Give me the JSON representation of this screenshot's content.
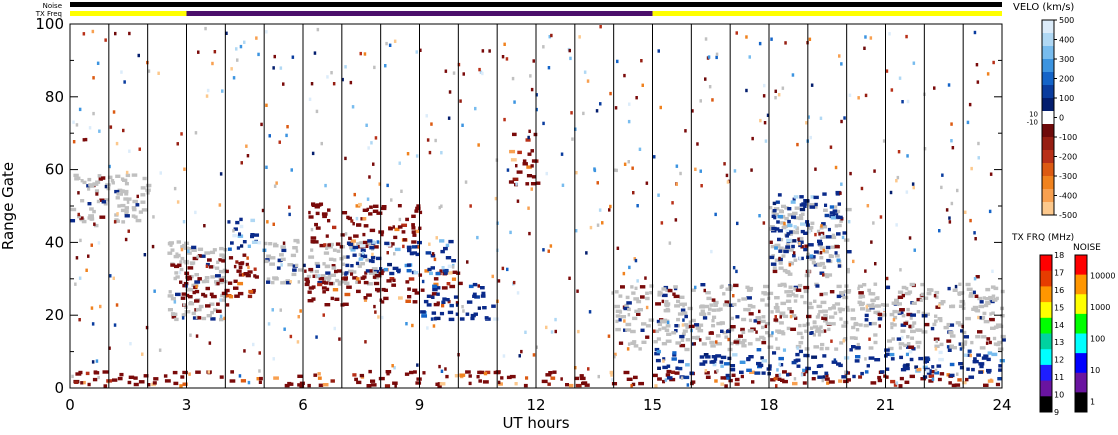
{
  "top_labels": {
    "noise": "Noise",
    "txfreq": "TX Freq"
  },
  "colors": {
    "noise_bar": "#000000",
    "txfreq_yellow": "#ffff00",
    "txfreq_purple": "#4b0f6b",
    "ground_scatter": "#c0c0c0"
  },
  "chart_data": {
    "type": "heatmap",
    "xlabel": "UT hours",
    "ylabel": "Range Gate",
    "xlim": [
      0,
      24
    ],
    "ylim": [
      0,
      100
    ],
    "x_ticks": [
      "0",
      "3",
      "6",
      "9",
      "12",
      "15",
      "18",
      "21",
      "24"
    ],
    "y_ticks": [
      "0",
      "20",
      "40",
      "60",
      "80",
      "100"
    ],
    "vertical_gridlines_hours": [
      1,
      2,
      3,
      4,
      5,
      6,
      7,
      8,
      9,
      10,
      11,
      12,
      13,
      14,
      15,
      16,
      17,
      18,
      19,
      20,
      21,
      22,
      23
    ],
    "txfreq_segments": [
      {
        "start": 0,
        "end": 3,
        "color": "yellow"
      },
      {
        "start": 3,
        "end": 15,
        "color": "purple"
      },
      {
        "start": 15,
        "end": 24,
        "color": "yellow"
      }
    ],
    "regions": [
      {
        "type": "ground",
        "x0": 0,
        "x1": 2,
        "y0": 44,
        "y1": 58
      },
      {
        "type": "ground",
        "x0": 2.5,
        "x1": 4,
        "y0": 18,
        "y1": 40
      },
      {
        "type": "ground",
        "x0": 5,
        "x1": 8,
        "y0": 28,
        "y1": 40
      },
      {
        "type": "ground",
        "x0": 14,
        "x1": 24,
        "y0": 10,
        "y1": 28
      },
      {
        "type": "ground",
        "x0": 18,
        "x1": 20,
        "y0": 30,
        "y1": 50
      },
      {
        "type": "red",
        "x0": 2.8,
        "x1": 4.8,
        "y0": 22,
        "y1": 36
      },
      {
        "type": "red",
        "x0": 6,
        "x1": 9,
        "y0": 38,
        "y1": 50
      },
      {
        "type": "red",
        "x0": 6,
        "x1": 10,
        "y0": 22,
        "y1": 32
      },
      {
        "type": "red",
        "x0": 11.3,
        "x1": 12,
        "y0": 55,
        "y1": 70
      },
      {
        "type": "red",
        "x0": 0,
        "x1": 24,
        "y0": 0,
        "y1": 4
      },
      {
        "type": "blue",
        "x0": 4,
        "x1": 5,
        "y0": 36,
        "y1": 46
      },
      {
        "type": "blue",
        "x0": 7,
        "x1": 10,
        "y0": 30,
        "y1": 40
      },
      {
        "type": "blue",
        "x0": 9,
        "x1": 11,
        "y0": 18,
        "y1": 28
      },
      {
        "type": "blue",
        "x0": 18,
        "x1": 19.8,
        "y0": 34,
        "y1": 54
      },
      {
        "type": "blue",
        "x0": 15,
        "x1": 24,
        "y0": 2,
        "y1": 10
      }
    ],
    "velocity_colorbar": {
      "title": "VELO (km/s)",
      "labels": [
        "500",
        "400",
        "300",
        "200",
        "100",
        "10",
        "0",
        "-10",
        "-100",
        "-200",
        "-300",
        "-400",
        "-500"
      ],
      "colors": [
        "#dcecfa",
        "#b0d8f4",
        "#78bcee",
        "#3c94e0",
        "#1464c8",
        "#0a3c9e",
        "#041e6e",
        "#ffffff",
        "#6e0a0a",
        "#961e12",
        "#b83018",
        "#dc5a12",
        "#f0821e",
        "#f8a050",
        "#fcc88c"
      ]
    },
    "txfreq_colorbar": {
      "title": "TX FRQ (MHz)",
      "labels": [
        "18",
        "17",
        "16",
        "15",
        "14",
        "13",
        "12",
        "11",
        "10",
        "9"
      ],
      "colors": [
        "#ff0000",
        "#e63c00",
        "#ff9600",
        "#ffff00",
        "#00ff00",
        "#00d2a0",
        "#00ffff",
        "#1e1eff",
        "#6a14a0",
        "#000000"
      ]
    },
    "noise_colorbar": {
      "title": "NOISE",
      "labels": [
        "10000",
        "1000",
        "100",
        "10",
        "1"
      ],
      "colors": [
        "#ff0000",
        "#ff9600",
        "#ffff00",
        "#00ff00",
        "#00ffff",
        "#0000ff",
        "#6a14a0",
        "#000000"
      ]
    }
  }
}
